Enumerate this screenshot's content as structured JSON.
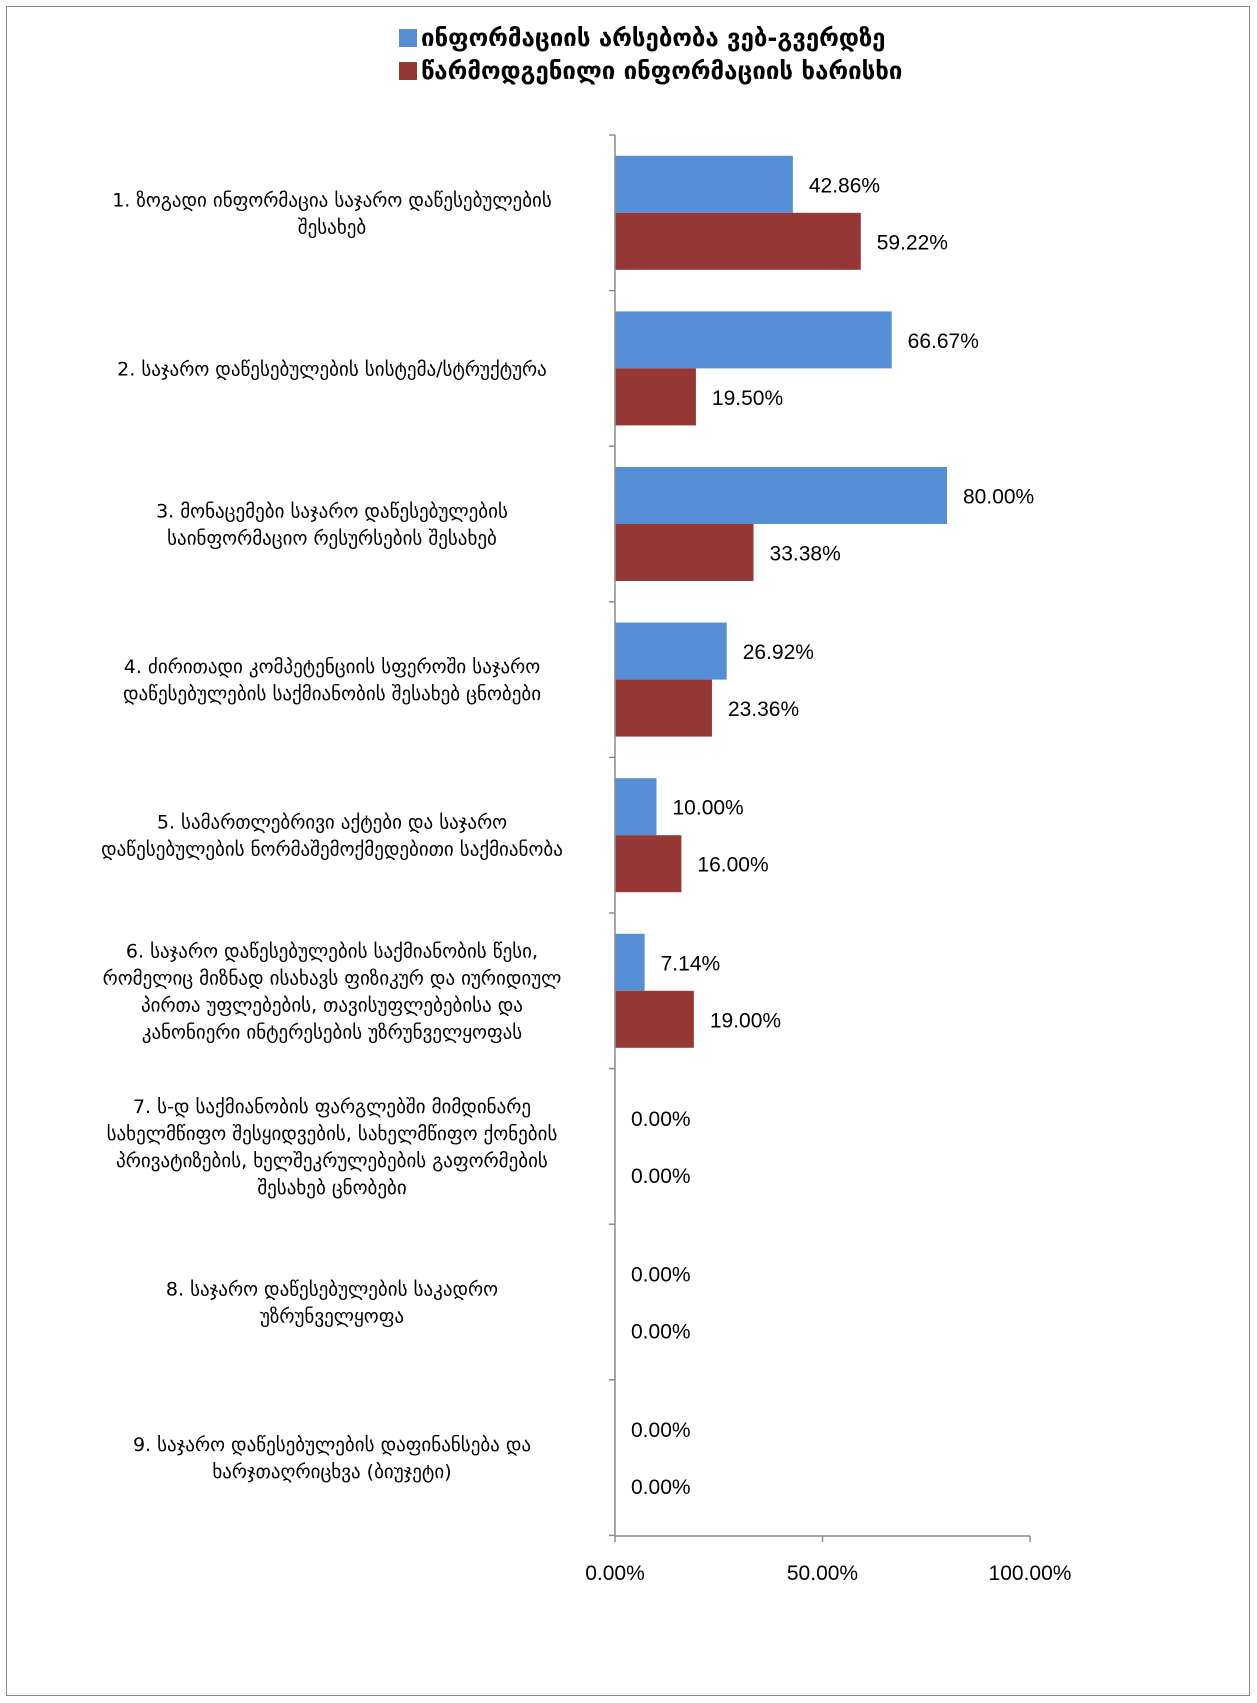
{
  "chart_data": {
    "type": "bar",
    "orientation": "horizontal",
    "legend_position": "top",
    "grid": false,
    "xlim": [
      0,
      100
    ],
    "x_ticks": [
      "0.00%",
      "50.00%",
      "100.00%"
    ],
    "categories": [
      [
        "1. ზოგადი ინფორმაცია საჯარო დაწესებულების",
        "შესახებ"
      ],
      [
        "2. საჯარო დაწესებულების სისტემა/სტრუქტურა"
      ],
      [
        "3. მონაცემები საჯარო დაწესებულების",
        "საინფორმაციო რესურსების შესახებ"
      ],
      [
        "4. ძირითადი კომპეტენციის სფეროში საჯარო",
        "დაწესებულების საქმიანობის შესახებ ცნობები"
      ],
      [
        "5. სამართლებრივი აქტები და საჯარო",
        "დაწესებულების ნორმაშემოქმედებითი საქმიანობა"
      ],
      [
        "6.  საჯარო დაწესებულების საქმიანობის წესი,",
        "რომელიც მიზნად ისახავს ფიზიკურ და იურიდიულ",
        "პირთა უფლებების, თავისუფლებებისა და",
        "კანონიერი ინტერესების უზრუნველყოფას"
      ],
      [
        "7. ს-დ საქმიანობის ფარგლებში მიმდინარე",
        "სახელმწიფო შესყიდვების, სახელმწიფო ქონების",
        "პრივატიზების, ხელშეკრულებების გაფორმების",
        "შესახებ ცნობები"
      ],
      [
        "8. საჯარო დაწესებულების საკადრო",
        "უზრუნველყოფა"
      ],
      [
        "9. საჯარო დაწესებულების დაფინანსება და",
        "ხარჯთაღრიცხვა (ბიუჯეტი)"
      ]
    ],
    "series": [
      {
        "name": "ინფორმაციის არსებობა ვებ-გვერდზე",
        "color": "#558ED5",
        "values": [
          42.86,
          66.67,
          80.0,
          26.92,
          10.0,
          7.14,
          0.0,
          0.0,
          0.0
        ],
        "labels": [
          "42.86%",
          "66.67%",
          "80.00%",
          "26.92%",
          "10.00%",
          "7.14%",
          "0.00%",
          "0.00%",
          "0.00%"
        ]
      },
      {
        "name": "წარმოდგენილი ინფორმაციის ხარისხი",
        "color": "#953735",
        "values": [
          59.22,
          19.5,
          33.38,
          23.36,
          16.0,
          19.0,
          0.0,
          0.0,
          0.0
        ],
        "labels": [
          "59.22%",
          "19.50%",
          "33.38%",
          "23.36%",
          "16.00%",
          "19.00%",
          "0.00%",
          "0.00%",
          "0.00%"
        ]
      }
    ]
  }
}
